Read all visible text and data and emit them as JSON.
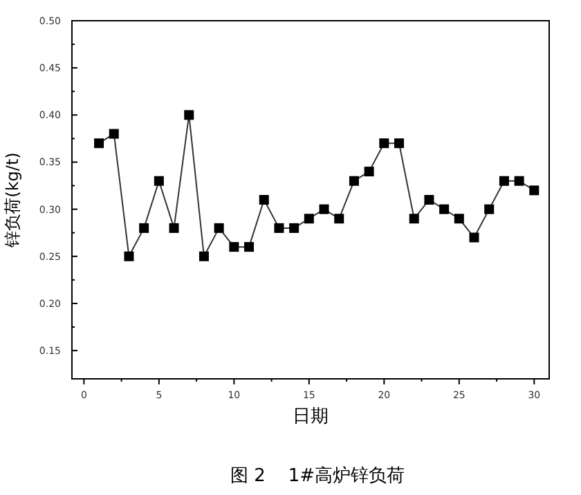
{
  "chart_data": {
    "type": "line",
    "xlabel": "日期",
    "ylabel": "锌负荷(kg/t)",
    "annotations": [
      "图 2    1#高炉锌负荷"
    ],
    "x": [
      1,
      2,
      3,
      4,
      5,
      6,
      7,
      8,
      9,
      10,
      11,
      12,
      13,
      14,
      15,
      16,
      17,
      18,
      19,
      20,
      21,
      22,
      23,
      24,
      25,
      26,
      27,
      28,
      29,
      30
    ],
    "series": [
      {
        "color": "#000000",
        "values": [
          0.37,
          0.38,
          0.25,
          0.28,
          0.33,
          0.28,
          0.4,
          0.25,
          0.28,
          0.26,
          0.26,
          0.31,
          0.28,
          0.28,
          0.29,
          0.3,
          0.29,
          0.33,
          0.34,
          0.37,
          0.37,
          0.29,
          0.31,
          0.3,
          0.29,
          0.27,
          0.3,
          0.33,
          0.33,
          0.32
        ]
      }
    ],
    "xlim": [
      -0.8,
      31
    ],
    "xticks": [
      0,
      5,
      10,
      15,
      20,
      25,
      30
    ],
    "ylim": [
      0.12,
      0.5
    ],
    "yticks": [
      0.15,
      {
        "value": 0.2,
        "label": "0.20"
      },
      0.25,
      {
        "value": 0.3,
        "label": "0.30"
      },
      0.35,
      {
        "value": 0.4,
        "label": "0.40"
      },
      0.45,
      {
        "value": 0.5,
        "label": "0.50"
      }
    ],
    "marker": "square",
    "line_style": "solid",
    "grid": false
  }
}
